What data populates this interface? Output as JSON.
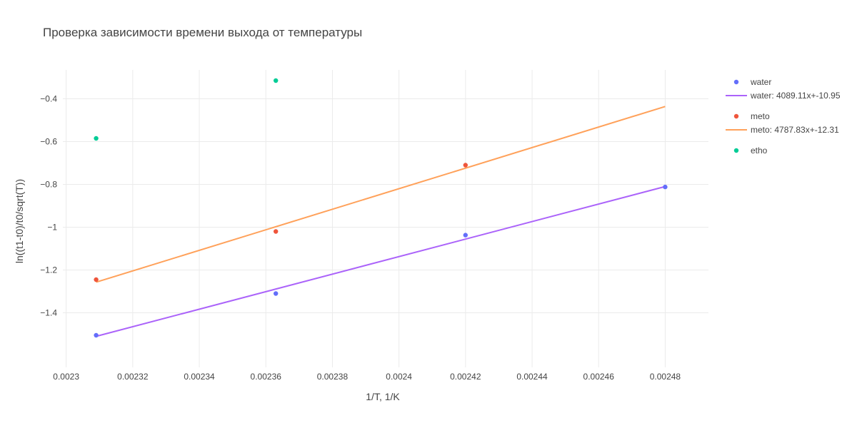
{
  "chart_data": {
    "type": "scatter",
    "title": "Проверка зависимости времени выхода от температуры",
    "xlabel": "1/T, 1/K",
    "ylabel": "ln((t1-t0)/t0/sqrt(T))",
    "xlim": [
      0.002299,
      0.002493
    ],
    "ylim": [
      -1.655,
      -0.265
    ],
    "grid": true,
    "legend_position": "right",
    "x_ticks": [
      0.0023,
      0.00232,
      0.00234,
      0.00236,
      0.00238,
      0.0024,
      0.00242,
      0.00244,
      0.00246,
      0.00248
    ],
    "x_tick_labels": [
      "0.0023",
      "0.00232",
      "0.00234",
      "0.00236",
      "0.00238",
      "0.0024",
      "0.00242",
      "0.00244",
      "0.00246",
      "0.00248"
    ],
    "y_ticks": [
      -1.4,
      -1.2,
      -1.0,
      -0.8,
      -0.6,
      -0.4
    ],
    "y_tick_labels": [
      "−1.4",
      "−1.2",
      "−1",
      "−0.8",
      "−0.6",
      "−0.4"
    ],
    "series": [
      {
        "name": "water",
        "mode": "markers",
        "color": "#636efa",
        "points": [
          [
            0.002309,
            -1.505
          ],
          [
            0.002363,
            -1.31
          ],
          [
            0.00242,
            -1.037
          ],
          [
            0.00248,
            -0.812
          ]
        ]
      },
      {
        "name": "water: 4089.11x+-10.95",
        "mode": "line",
        "color": "#ab63fa",
        "points": [
          [
            0.002309,
            -1.51
          ],
          [
            0.00248,
            -0.81
          ]
        ]
      },
      {
        "name": "meto",
        "mode": "markers",
        "color": "#ef553b",
        "points": [
          [
            0.002309,
            -1.245
          ],
          [
            0.002363,
            -1.02
          ],
          [
            0.00242,
            -0.71
          ]
        ]
      },
      {
        "name": "meto: 4787.83x+-12.31",
        "mode": "line",
        "color": "#ffa15a",
        "points": [
          [
            0.002309,
            -1.257
          ],
          [
            0.00248,
            -0.436
          ]
        ]
      },
      {
        "name": "etho",
        "mode": "markers",
        "color": "#00cc96",
        "points": [
          [
            0.002309,
            -0.585
          ],
          [
            0.002363,
            -0.315
          ]
        ]
      }
    ]
  }
}
